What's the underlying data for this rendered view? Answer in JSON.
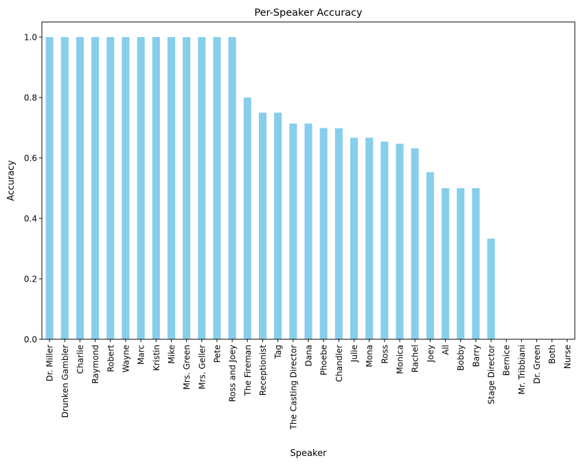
{
  "chart_data": {
    "type": "bar",
    "title": "Per-Speaker Accuracy",
    "xlabel": "Speaker",
    "ylabel": "Accuracy",
    "ylim": [
      0,
      1.05
    ],
    "yticks": [
      "0.0",
      "0.2",
      "0.4",
      "0.6",
      "0.8",
      "1.0"
    ],
    "bar_color": "#87ceeb",
    "grid": false,
    "categories": [
      "Dr. Miller",
      "Drunken Gambler",
      "Charlie",
      "Raymond",
      "Robert",
      "Wayne",
      "Marc",
      "Kristin",
      "Mike",
      "Mrs. Green",
      "Mrs. Geller",
      "Pete",
      "Ross and Joey",
      "The Fireman",
      "Receptionist",
      "Tag",
      "The Casting Director",
      "Dana",
      "Phoebe",
      "Chandler",
      "Julie",
      "Mona",
      "Ross",
      "Monica",
      "Rachel",
      "Joey",
      "All",
      "Bobby",
      "Barry",
      "Stage Director",
      "Bernice",
      "Mr. Tribbiani",
      "Dr. Green",
      "Both",
      "Nurse"
    ],
    "values": [
      1.0,
      1.0,
      1.0,
      1.0,
      1.0,
      1.0,
      1.0,
      1.0,
      1.0,
      1.0,
      1.0,
      1.0,
      1.0,
      0.8,
      0.75,
      0.75,
      0.714,
      0.714,
      0.699,
      0.698,
      0.667,
      0.667,
      0.654,
      0.647,
      0.632,
      0.553,
      0.5,
      0.5,
      0.5,
      0.333,
      0,
      0,
      0,
      0,
      0
    ]
  }
}
